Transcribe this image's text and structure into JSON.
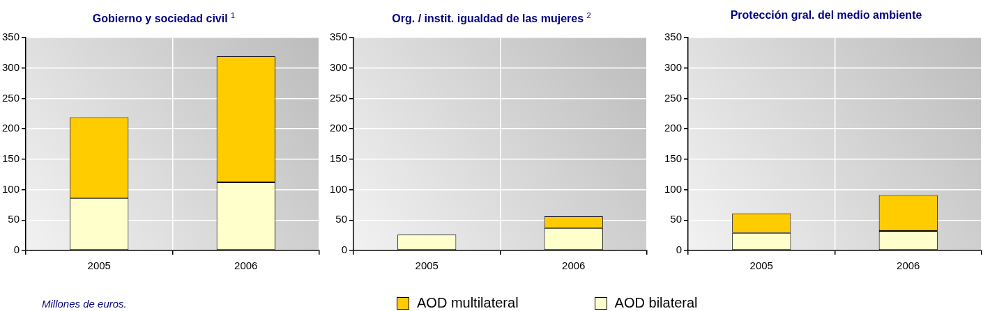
{
  "chart_data": [
    {
      "type": "bar",
      "title": "Gobierno y sociedad civil $^{1}$",
      "categories": [
        "2005",
        "2006"
      ],
      "stacked": true,
      "legend": "bottom",
      "grid": true,
      "ylim": [
        0,
        350
      ],
      "yticks": [
        0,
        50,
        100,
        150,
        200,
        250,
        300,
        350
      ],
      "series": [
        {
          "name": "AOD bilateral",
          "color": "#ffffcc",
          "values": [
            86,
            112
          ]
        },
        {
          "name": "AOD multilateral",
          "color": "#ffcc00",
          "values": [
            133,
            207
          ]
        }
      ],
      "annotations": [
        "Millones de euros."
      ]
    },
    {
      "type": "bar",
      "title": "Org. / instit. igualdad de las mujeres $^{2}$",
      "categories": [
        "2005",
        "2006"
      ],
      "stacked": true,
      "grid": true,
      "ylim": [
        0,
        350
      ],
      "yticks": [
        0,
        50,
        100,
        150,
        200,
        250,
        300,
        350
      ],
      "series": [
        {
          "color": "#ffffcc",
          "values": [
            26,
            37
          ]
        },
        {
          "color": "#ffcc00",
          "values": [
            0,
            19
          ]
        }
      ]
    },
    {
      "type": "bar",
      "title": "Protección gral. del medio ambiente",
      "categories": [
        "2005",
        "2006"
      ],
      "stacked": true,
      "grid": true,
      "ylim": [
        0,
        350
      ],
      "yticks": [
        0,
        50,
        100,
        150,
        200,
        250,
        300,
        350
      ],
      "series": [
        {
          "color": "#ffffcc",
          "values": [
            29,
            32
          ]
        },
        {
          "color": "#ffcc00",
          "values": [
            32,
            59
          ]
        }
      ]
    }
  ]
}
